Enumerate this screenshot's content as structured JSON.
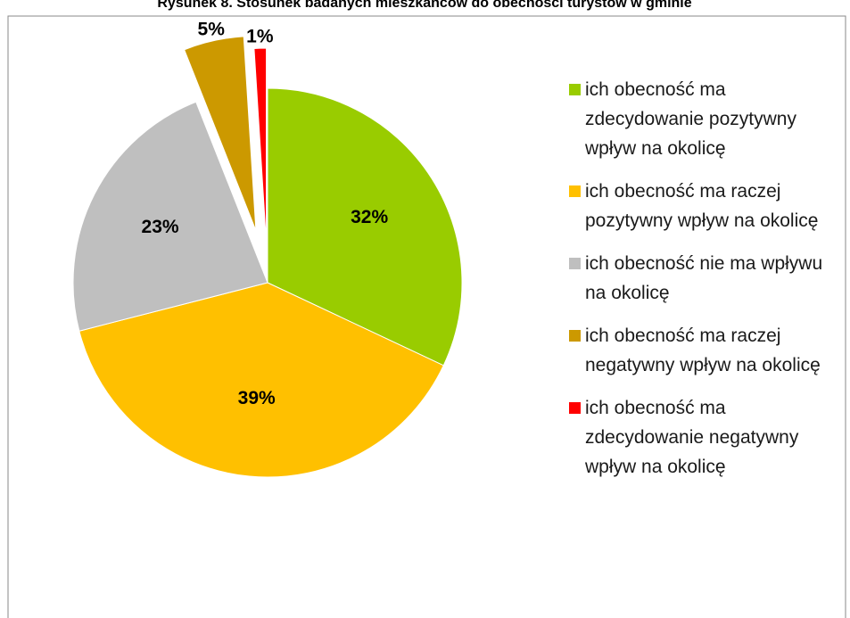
{
  "chart_data": {
    "type": "pie",
    "title": "Rysunek 8. Stosunek badanych mieszkańców do obecności turystów w gminie",
    "categories": [
      "ich obecność ma zdecydowanie pozytywny wpływ na okolicę",
      "ich obecność ma raczej pozytywny wpływ na okolicę",
      "ich obecność nie ma wpływu na okolicę",
      "ich obecność ma raczej negatywny wpływ na okolicę",
      "ich obecność ma zdecydowanie negatywny wpływ na okolicę"
    ],
    "values": [
      32,
      39,
      23,
      5,
      1
    ],
    "value_labels": [
      "32%",
      "39%",
      "23%",
      "5%",
      "1%"
    ],
    "colors": [
      "#99cc00",
      "#ffc000",
      "#bfbfbf",
      "#cc9900",
      "#ff0000"
    ],
    "legend": "right"
  }
}
